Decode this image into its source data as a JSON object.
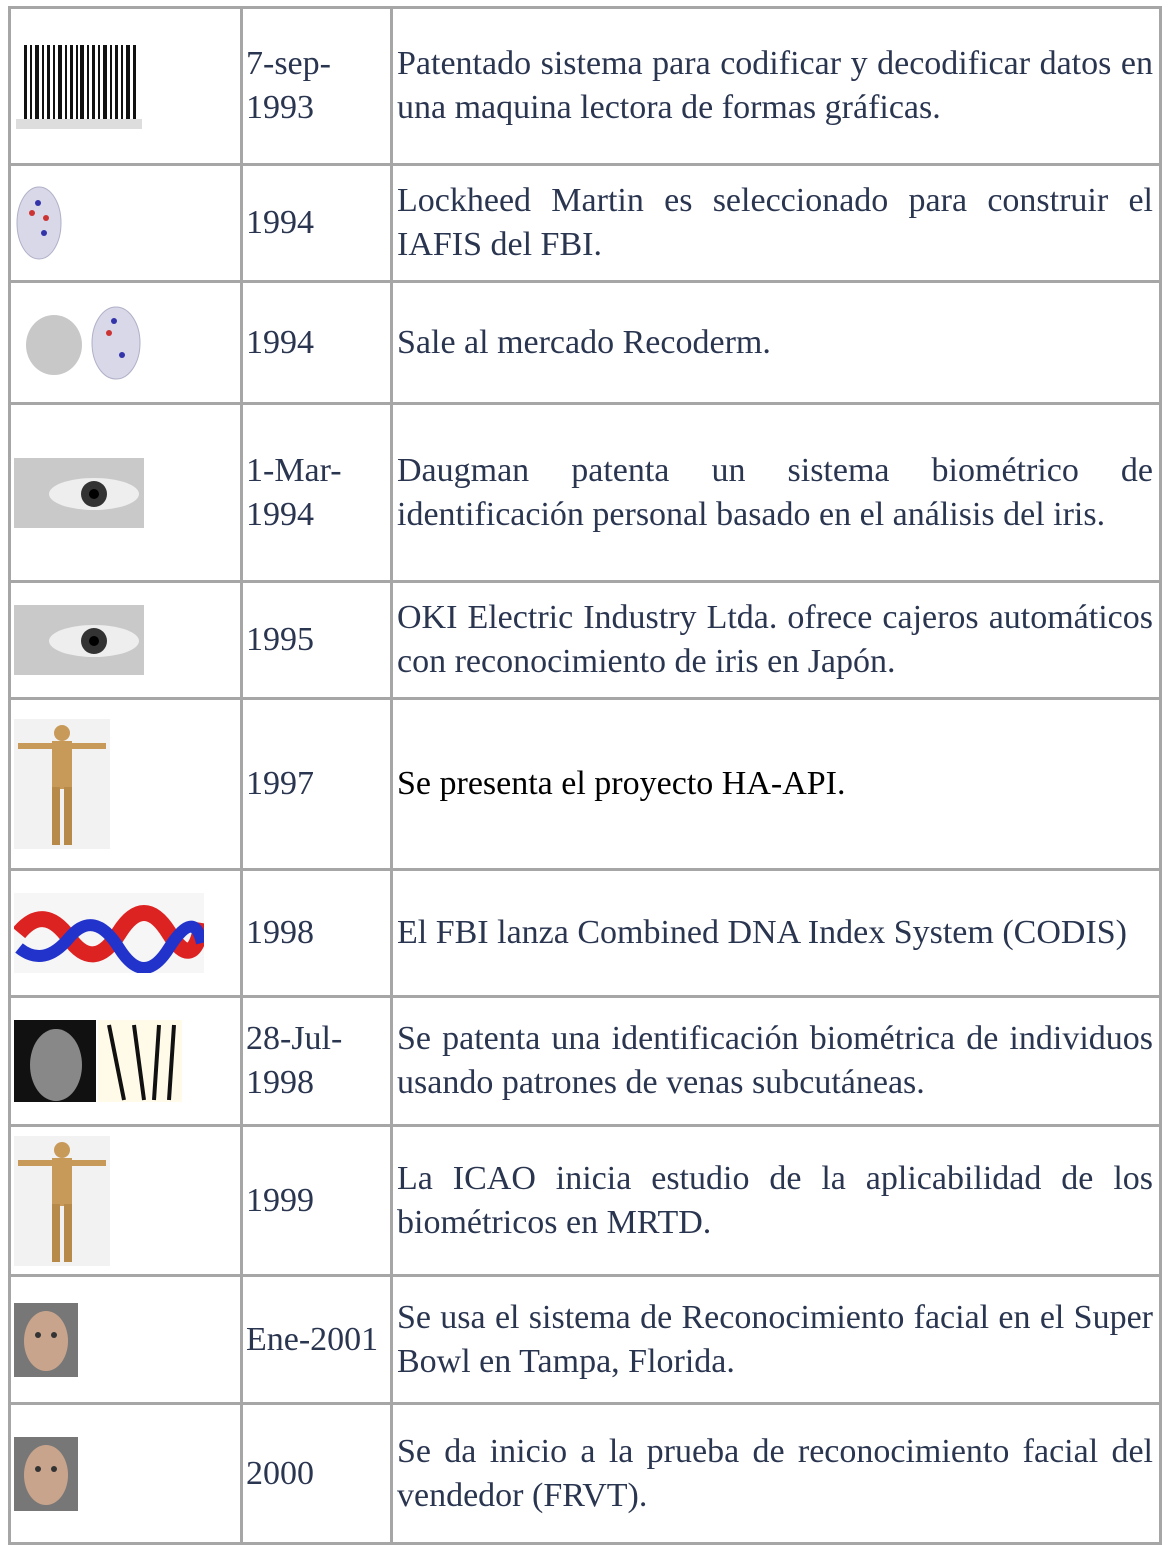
{
  "rows": [
    {
      "date": "7-sep-1993",
      "text": "Patentado sistema para codificar y decodificar datos en una maquina lectora de formas gráficas."
    },
    {
      "date": "1994",
      "text": "Lockheed Martin es seleccionado para construir el IAFIS del FBI."
    },
    {
      "date": "1994",
      "text": "Sale al mercado Recoderm."
    },
    {
      "date": "1-Mar-1994",
      "text": "Daugman patenta un sistema biométrico de identificación personal basado en el análisis del iris."
    },
    {
      "date": "1995",
      "text": "OKI Electric Industry Ltda. ofrece cajeros automáticos con reconocimiento de iris en Japón."
    },
    {
      "date": "1997",
      "text": "Se presenta el proyecto HA-API."
    },
    {
      "date": "1998",
      "text": "El FBI lanza Combined DNA Index System (CODIS)"
    },
    {
      "date": "28-Jul-1998",
      "text": "Se patenta una identificación biométrica de individuos usando patrones de venas subcutáneas."
    },
    {
      "date": "1999",
      "text": "La ICAO inicia estudio de la aplicabilidad de los biométricos en MRTD."
    },
    {
      "date": "Ene-2001",
      "text": "Se usa el sistema de Reconocimiento facial en el Super Bowl en Tampa, Florida."
    },
    {
      "date": "2000",
      "text": "Se da inicio a la prueba de reconocimiento facial del vendedor (FRVT)."
    }
  ]
}
